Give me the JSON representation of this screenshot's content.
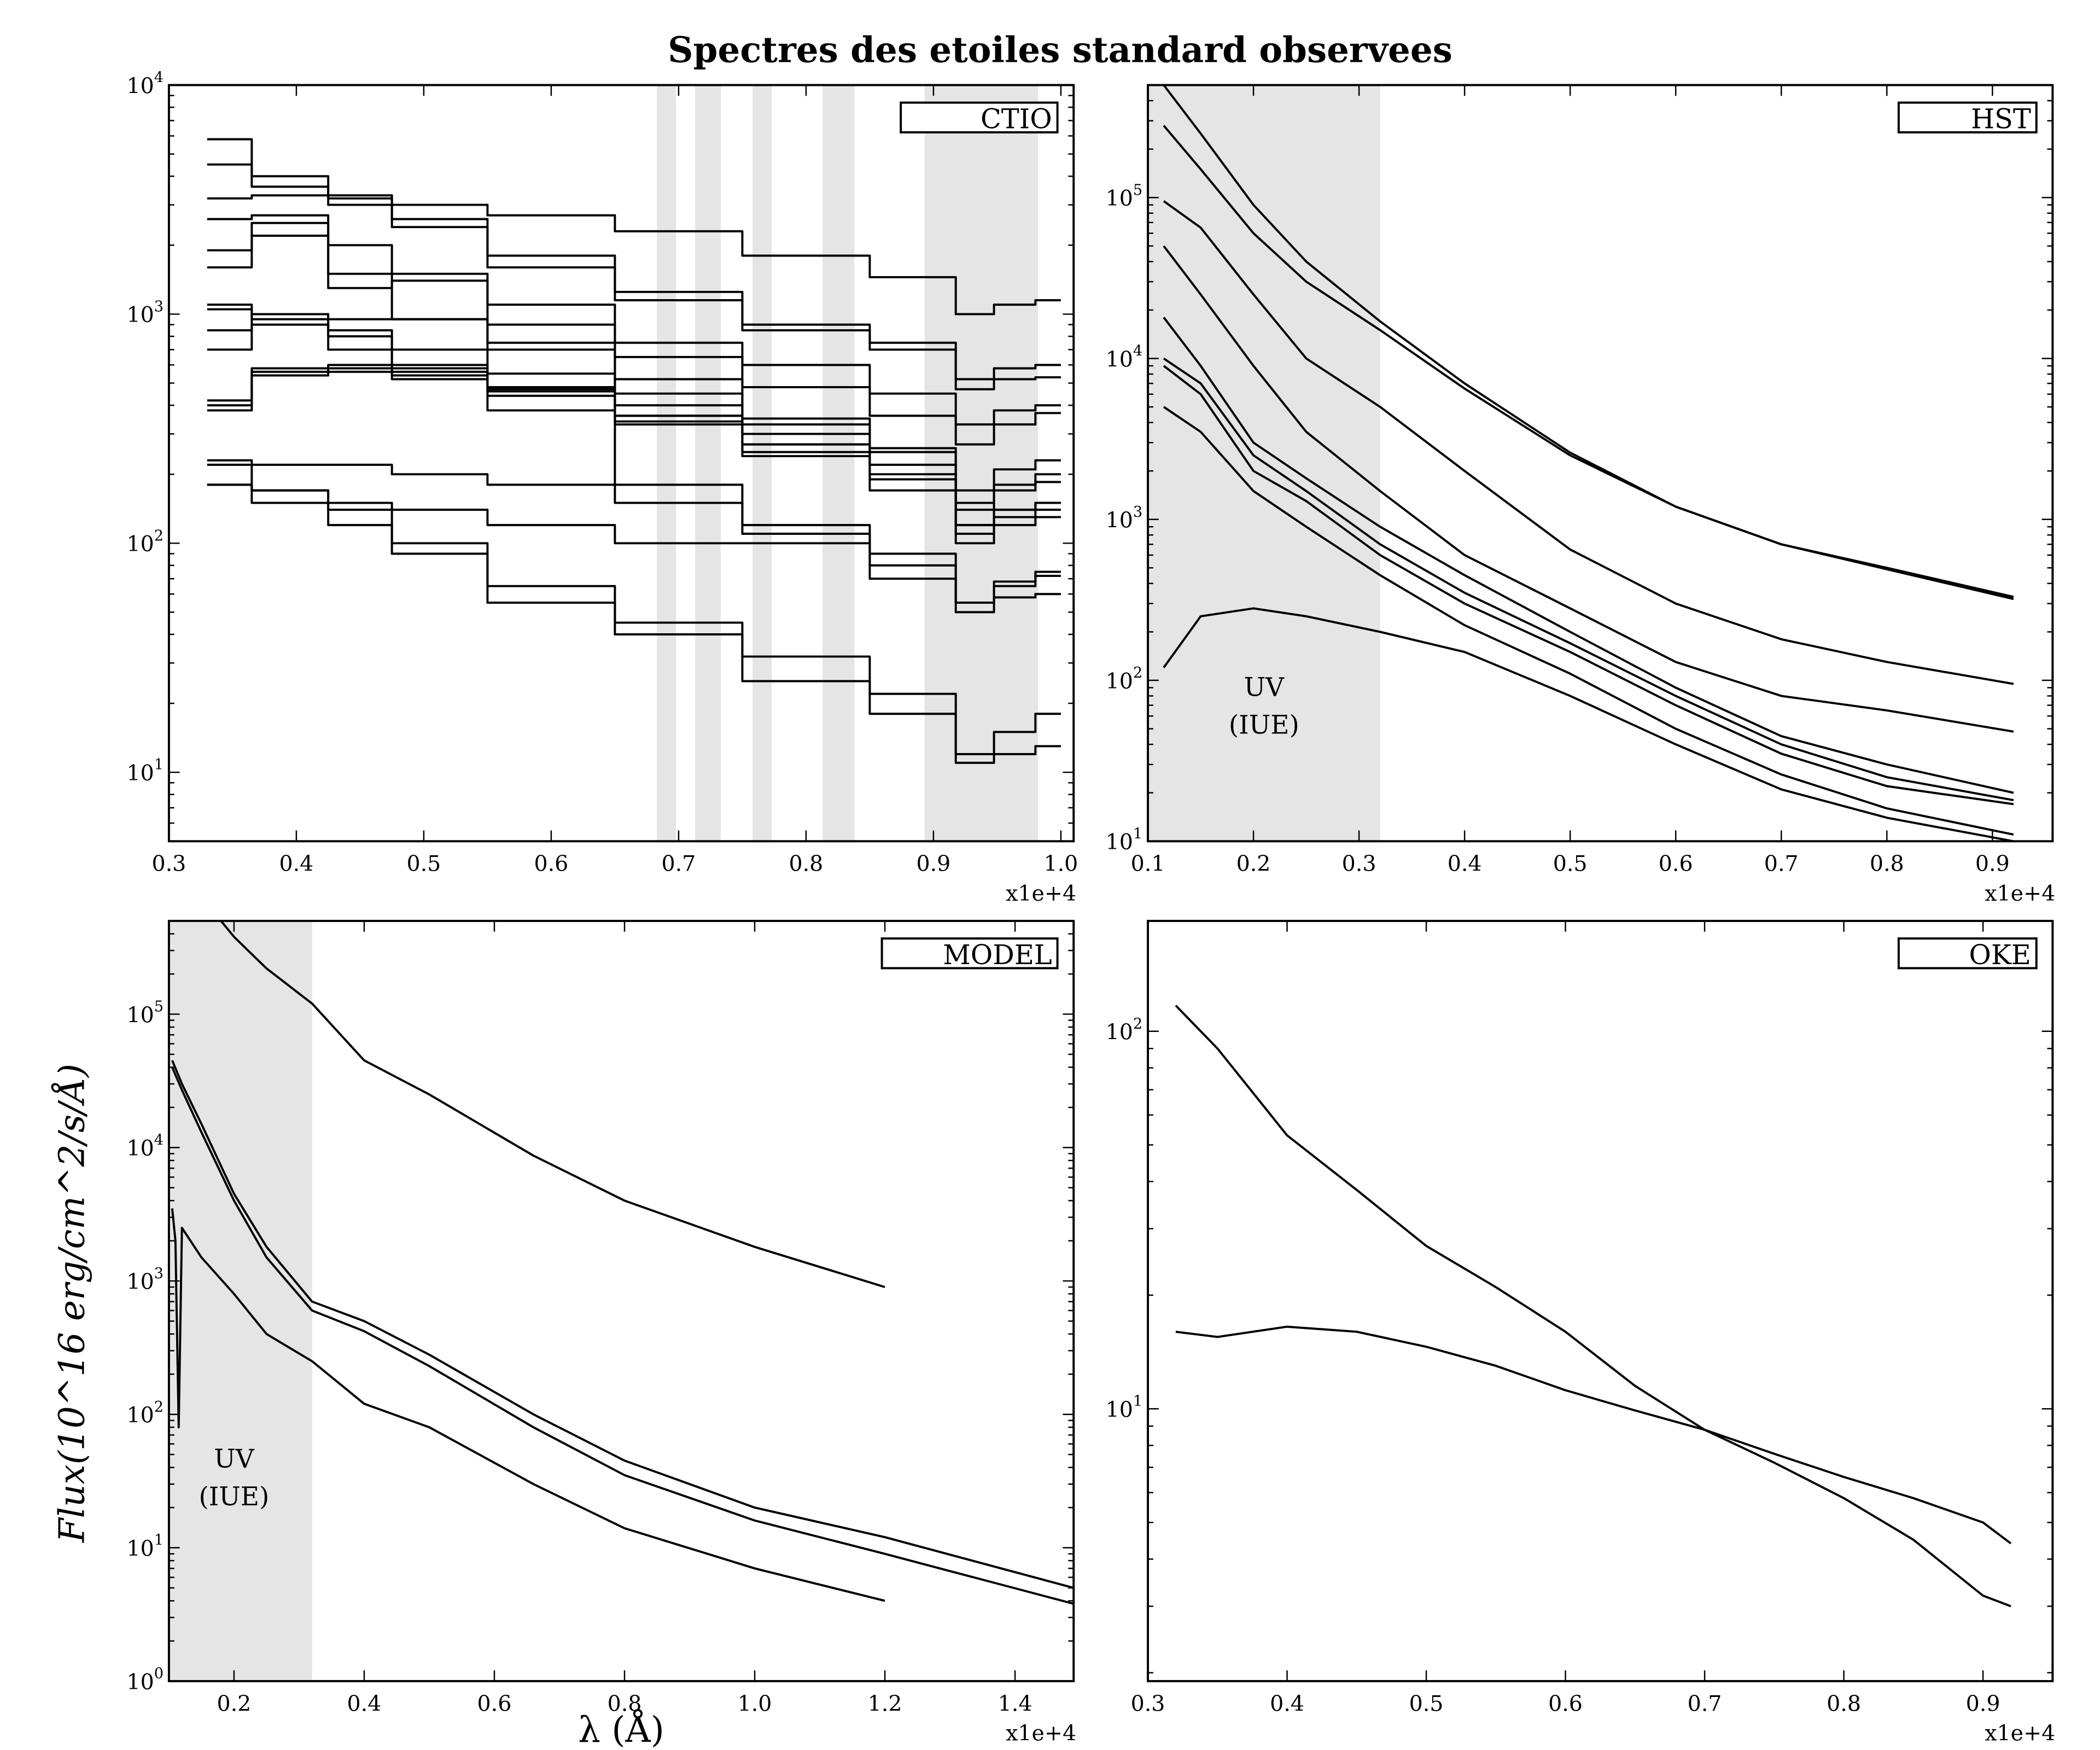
{
  "title": "Spectres des etoiles standard observees",
  "ylabel": "Flux(10^16 erg/cm^2/s/Å)",
  "xlabel": "λ (Å)",
  "colors": {
    "line": "#000000",
    "shade": "#e5e5e5"
  },
  "chart_data": [
    {
      "type": "line",
      "step": true,
      "panel": "CTIO",
      "legend": "CTIO",
      "legend_placement": "top-right",
      "x_offset_label": "x1e+4",
      "xlim": [
        0.3,
        1.01
      ],
      "ylim": [
        5,
        10000
      ],
      "yscale": "log",
      "xticks": [
        0.3,
        0.4,
        0.5,
        0.6,
        0.7,
        0.8,
        0.9,
        1.0
      ],
      "xtick_labels": [
        "0.3",
        "0.4",
        "0.5",
        "0.6",
        "0.7",
        "0.8",
        "0.9",
        "1.0"
      ],
      "yticks": [
        10,
        100,
        1000,
        10000
      ],
      "ytick_exponents": [
        "1",
        "2",
        "3",
        "4"
      ],
      "shaded_ranges": [
        [
          0.683,
          0.698
        ],
        [
          0.713,
          0.733
        ],
        [
          0.758,
          0.773
        ],
        [
          0.813,
          0.838
        ],
        [
          0.893,
          0.982
        ]
      ],
      "x": [
        0.33,
        0.4,
        0.45,
        0.5,
        0.6,
        0.7,
        0.8,
        0.9,
        0.935,
        0.96,
        1.0
      ],
      "series": [
        {
          "values": [
            5800,
            4000,
            3300,
            3000,
            2700,
            2300,
            1800,
            1450,
            1000,
            1100,
            1150
          ]
        },
        {
          "values": [
            4500,
            3600,
            3200,
            2600,
            1800,
            1250,
            900,
            750,
            520,
            580,
            600
          ]
        },
        {
          "values": [
            3200,
            3300,
            3000,
            2400,
            1600,
            1150,
            850,
            700,
            470,
            520,
            530
          ]
        },
        {
          "values": [
            2600,
            2700,
            1300,
            1400,
            1100,
            750,
            600,
            450,
            330,
            380,
            400
          ]
        },
        {
          "values": [
            1900,
            2200,
            2000,
            1500,
            900,
            650,
            480,
            360,
            270,
            330,
            370
          ]
        },
        {
          "values": [
            1600,
            2500,
            1500,
            950,
            700,
            450,
            330,
            250,
            170,
            210,
            230
          ]
        },
        {
          "values": [
            1100,
            1000,
            950,
            950,
            750,
            520,
            350,
            260,
            150,
            180,
            200
          ]
        },
        {
          "values": [
            1050,
            950,
            850,
            700,
            550,
            400,
            300,
            220,
            140,
            170,
            185
          ]
        },
        {
          "values": [
            850,
            1000,
            800,
            600,
            480,
            360,
            270,
            200,
            120,
            140,
            150
          ]
        },
        {
          "values": [
            700,
            900,
            700,
            580,
            460,
            340,
            250,
            190,
            110,
            130,
            140
          ]
        },
        {
          "values": [
            420,
            580,
            600,
            560,
            470,
            360,
            270,
            190,
            120,
            140,
            150
          ]
        },
        {
          "values": [
            400,
            560,
            580,
            540,
            380,
            180,
            120,
            90,
            55,
            68,
            75
          ]
        },
        {
          "values": [
            380,
            540,
            560,
            520,
            440,
            330,
            240,
            170,
            100,
            120,
            130
          ]
        },
        {
          "values": [
            230,
            220,
            220,
            200,
            180,
            150,
            110,
            80,
            55,
            65,
            72
          ]
        },
        {
          "values": [
            180,
            170,
            150,
            140,
            120,
            100,
            100,
            70,
            50,
            58,
            60
          ]
        },
        {
          "values": [
            220,
            170,
            140,
            100,
            65,
            45,
            32,
            22,
            12,
            15,
            18
          ]
        },
        {
          "values": [
            180,
            150,
            120,
            90,
            55,
            40,
            25,
            18,
            11,
            12,
            13
          ]
        }
      ]
    },
    {
      "type": "line",
      "panel": "HST",
      "legend": "HST",
      "legend_placement": "top-right",
      "x_offset_label": "x1e+4",
      "xlim": [
        0.1,
        0.957
      ],
      "ylim": [
        10,
        500000
      ],
      "yscale": "log",
      "xticks": [
        0.1,
        0.2,
        0.3,
        0.4,
        0.5,
        0.6,
        0.7,
        0.8,
        0.9
      ],
      "xtick_labels": [
        "0.1",
        "0.2",
        "0.3",
        "0.4",
        "0.5",
        "0.6",
        "0.7",
        "0.8",
        "0.9"
      ],
      "yticks": [
        10,
        100,
        1000,
        10000,
        100000
      ],
      "ytick_exponents": [
        "1",
        "2",
        "3",
        "4",
        "5"
      ],
      "shaded_ranges": [
        [
          0.1,
          0.32
        ]
      ],
      "annotation": [
        "UV",
        "(IUE)"
      ],
      "annotation_at": [
        0.21,
        80
      ],
      "x": [
        0.115,
        0.15,
        0.2,
        0.25,
        0.32,
        0.4,
        0.5,
        0.6,
        0.7,
        0.8,
        0.92
      ],
      "series": [
        {
          "values": [
            500000,
            250000,
            90000,
            40000,
            17000,
            7000,
            2600,
            1200,
            700,
            500,
            330
          ]
        },
        {
          "values": [
            280000,
            150000,
            60000,
            30000,
            15000,
            6500,
            2500,
            1200,
            700,
            490,
            320
          ]
        },
        {
          "values": [
            95000,
            65000,
            25000,
            10000,
            5000,
            2000,
            650,
            300,
            180,
            130,
            95
          ]
        },
        {
          "values": [
            50000,
            25000,
            9000,
            3500,
            1500,
            600,
            280,
            130,
            80,
            65,
            48
          ]
        },
        {
          "values": [
            18000,
            9000,
            3000,
            1800,
            900,
            450,
            200,
            90,
            45,
            30,
            20
          ]
        },
        {
          "values": [
            10000,
            7000,
            2500,
            1500,
            700,
            350,
            170,
            80,
            40,
            25,
            18
          ]
        },
        {
          "values": [
            9000,
            6000,
            2000,
            1300,
            600,
            300,
            150,
            70,
            35,
            22,
            17
          ]
        },
        {
          "values": [
            5000,
            3500,
            1500,
            900,
            450,
            220,
            110,
            50,
            26,
            16,
            11
          ]
        },
        {
          "values": [
            120,
            250,
            280,
            250,
            200,
            150,
            80,
            40,
            21,
            14,
            10
          ]
        }
      ]
    },
    {
      "type": "line",
      "panel": "MODEL",
      "legend": "MODEL",
      "legend_placement": "top-right",
      "x_offset_label": "x1e+4",
      "xlim": [
        0.1,
        1.49
      ],
      "ylim": [
        1,
        500000
      ],
      "yscale": "log",
      "xticks": [
        0.2,
        0.4,
        0.6,
        0.8,
        1.0,
        1.2,
        1.4
      ],
      "xtick_labels": [
        "0.2",
        "0.4",
        "0.6",
        "0.8",
        "1.0",
        "1.2",
        "1.4"
      ],
      "yticks": [
        1,
        10,
        100,
        1000,
        10000,
        100000
      ],
      "ytick_exponents": [
        "0",
        "1",
        "2",
        "3",
        "4",
        "5"
      ],
      "shaded_ranges": [
        [
          0.1,
          0.32
        ]
      ],
      "annotation": [
        "UV",
        "(IUE)"
      ],
      "annotation_at": [
        0.2,
        40
      ],
      "series": [
        {
          "x": [
            0.18,
            0.2,
            0.25,
            0.32,
            0.4,
            0.5,
            0.66,
            0.8,
            1.0,
            1.2
          ],
          "values": [
            500000,
            380000,
            220000,
            120000,
            45000,
            25000,
            8700,
            4000,
            1800,
            900
          ]
        },
        {
          "x": [
            0.105,
            0.12,
            0.15,
            0.2,
            0.25,
            0.32,
            0.4,
            0.5,
            0.66,
            0.8,
            1.0,
            1.2,
            1.49
          ],
          "values": [
            45000,
            30000,
            15000,
            4500,
            1800,
            700,
            500,
            280,
            100,
            45,
            20,
            12,
            5
          ]
        },
        {
          "x": [
            0.105,
            0.12,
            0.15,
            0.2,
            0.25,
            0.32,
            0.4,
            0.5,
            0.66,
            0.8,
            1.0,
            1.2,
            1.49
          ],
          "values": [
            40000,
            27000,
            13000,
            4000,
            1500,
            600,
            420,
            230,
            80,
            35,
            16,
            9,
            3.8
          ]
        },
        {
          "x": [
            0.105,
            0.11,
            0.115,
            0.12,
            0.15,
            0.2,
            0.25,
            0.32,
            0.4,
            0.5,
            0.66,
            0.8,
            1.0,
            1.2
          ],
          "values": [
            3500,
            2000,
            80,
            2500,
            1500,
            800,
            400,
            250,
            120,
            80,
            30,
            14,
            7,
            4
          ]
        }
      ]
    },
    {
      "type": "line",
      "panel": "OKE",
      "legend": "OKE",
      "legend_placement": "top-right",
      "x_offset_label": "x1e+4",
      "xlim": [
        0.3,
        0.95
      ],
      "ylim": [
        1.9,
        196
      ],
      "yscale": "log",
      "xticks": [
        0.3,
        0.4,
        0.5,
        0.6,
        0.7,
        0.8,
        0.9
      ],
      "xtick_labels": [
        "0.3",
        "0.4",
        "0.5",
        "0.6",
        "0.7",
        "0.8",
        "0.9"
      ],
      "yticks": [
        10,
        100
      ],
      "ytick_exponents": [
        "1",
        "2"
      ],
      "shaded_ranges": [],
      "x": [
        0.32,
        0.35,
        0.4,
        0.45,
        0.5,
        0.55,
        0.6,
        0.65,
        0.7,
        0.75,
        0.8,
        0.85,
        0.9,
        0.92
      ],
      "series": [
        {
          "values": [
            117,
            90,
            53,
            38,
            27,
            21,
            16,
            11.5,
            8.8,
            7.2,
            5.8,
            4.5,
            3.2,
            3.0
          ]
        },
        {
          "values": [
            16,
            15.5,
            16.5,
            16,
            14.6,
            13,
            11.2,
            9.9,
            8.8,
            7.6,
            6.6,
            5.8,
            5.0,
            4.4
          ]
        }
      ]
    }
  ]
}
